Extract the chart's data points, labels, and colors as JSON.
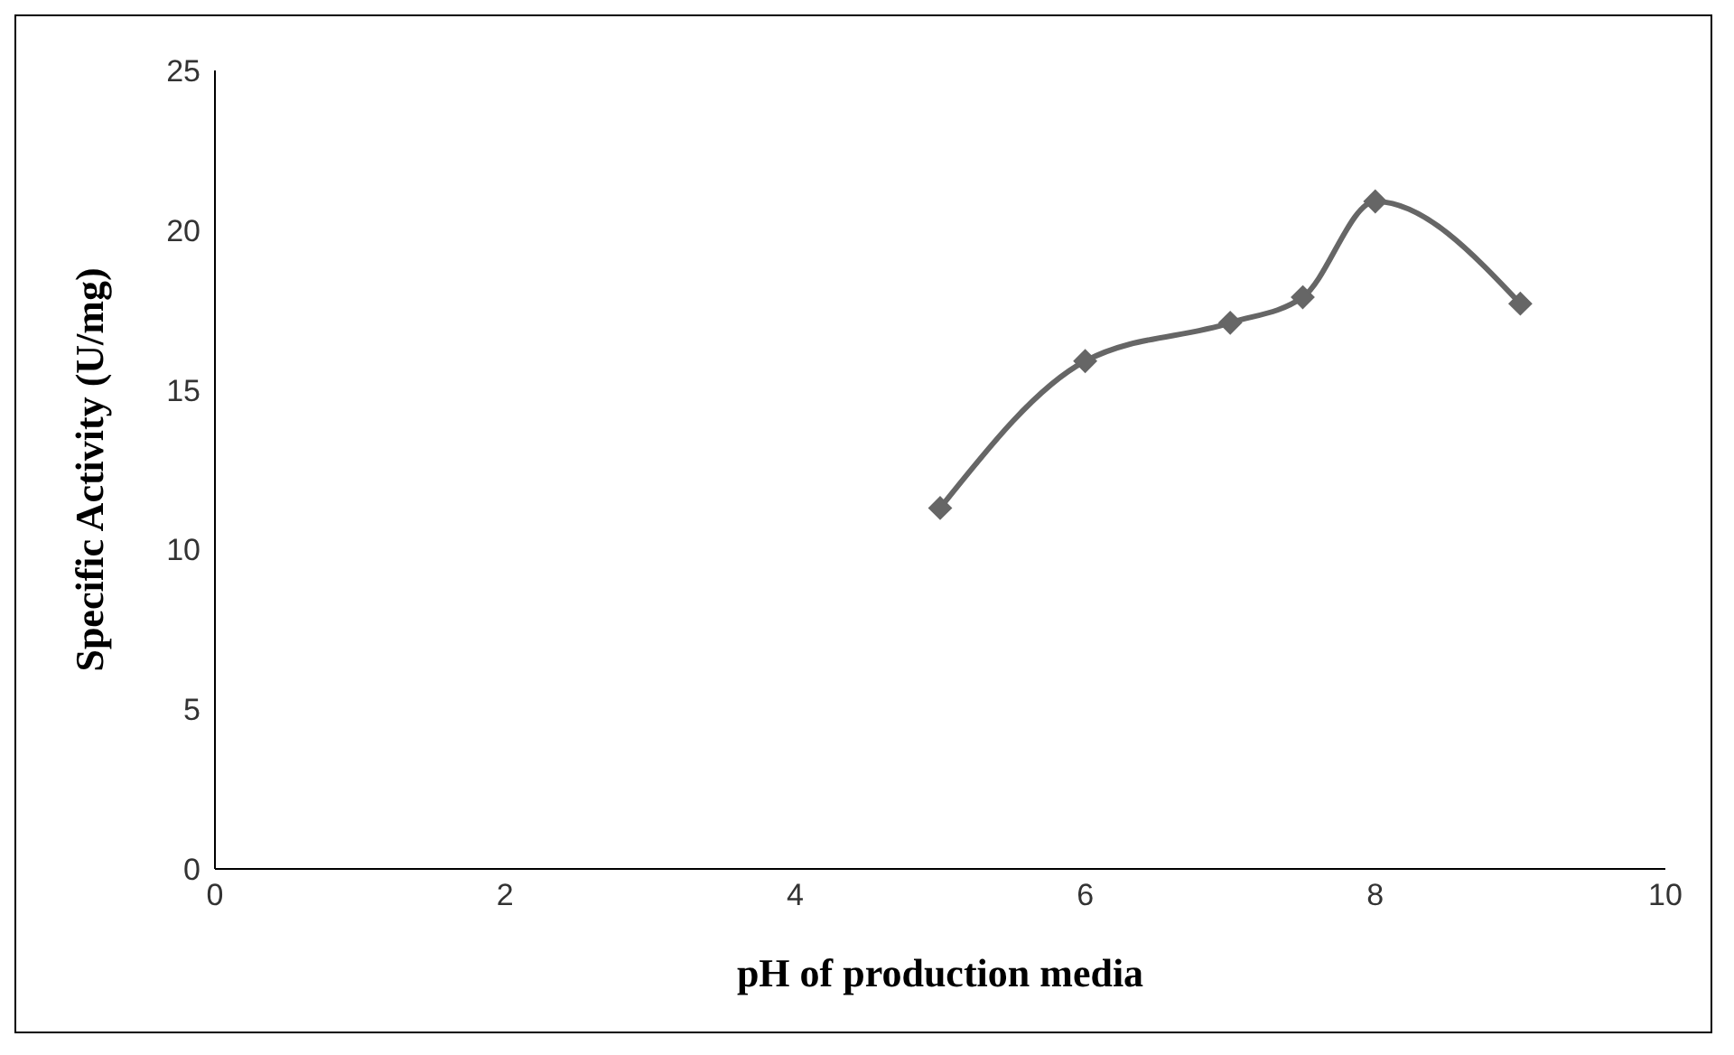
{
  "chart_data": {
    "type": "line",
    "xlabel": "pH of production media",
    "ylabel": "Specific Activity (U/mg)",
    "x": [
      5,
      6,
      7,
      7.5,
      8,
      9
    ],
    "series": [
      {
        "color": "#666666",
        "values": [
          11.3,
          15.9,
          17.1,
          17.9,
          20.9,
          17.7
        ]
      }
    ],
    "xlim": [
      0,
      10
    ],
    "xticks": [
      0,
      2,
      4,
      6,
      8,
      10
    ],
    "ylim": [
      0,
      25
    ],
    "yticks": [
      0,
      5,
      10,
      15,
      20,
      25
    ],
    "grid": false,
    "legend": false,
    "marker": "diamond",
    "line_style": "solid"
  }
}
